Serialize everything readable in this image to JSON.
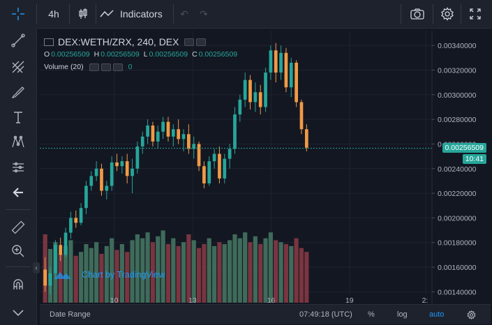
{
  "toolbar": {
    "interval": "4h",
    "indicators_label": "Indicators"
  },
  "legend": {
    "symbol": "DEX:WETH/ZRX, 240, DEX",
    "o_label": "O",
    "o_val": "0.00256509",
    "h_label": "H",
    "h_val": "0.00256509",
    "l_label": "L",
    "l_val": "0.00256509",
    "c_label": "C",
    "c_val": "0.00256509",
    "volume_label": "Volume (20)",
    "volume_val": "0"
  },
  "watermark": "Chart by TradingView",
  "price_axis": {
    "labels": [
      "0.00340000",
      "0.00320000",
      "0.00300000",
      "0.00280000",
      "0.00260000",
      "0.00240000",
      "0.00220000",
      "0.00200000",
      "0.00180000",
      "0.00160000",
      "0.00140000"
    ],
    "last_price": "0.00256509",
    "countdown": "10:41"
  },
  "time_axis": {
    "labels": [
      "10",
      "13",
      "16",
      "19",
      "2:"
    ]
  },
  "bottom": {
    "date_range": "Date Range",
    "time": "07:49:18 (UTC)",
    "percent": "%",
    "log": "log",
    "auto": "auto"
  },
  "colors": {
    "up": "#26a69a",
    "down": "#ef9a45",
    "vol_up": "#3f6b5a",
    "vol_down": "#7a3540",
    "accent": "#2196f3"
  },
  "chart_data": {
    "type": "candlestick",
    "y_range": [
      0.0013,
      0.00352
    ],
    "ohlc": [
      [
        0.00158,
        0.00168,
        0.0014,
        0.00145
      ],
      [
        0.00145,
        0.0016,
        0.00138,
        0.00155
      ],
      [
        0.00155,
        0.00182,
        0.0015,
        0.00178
      ],
      [
        0.00178,
        0.00184,
        0.00165,
        0.0017
      ],
      [
        0.0017,
        0.00192,
        0.00168,
        0.00188
      ],
      [
        0.00188,
        0.00205,
        0.00183,
        0.002
      ],
      [
        0.002,
        0.00206,
        0.00192,
        0.00196
      ],
      [
        0.00196,
        0.00212,
        0.00194,
        0.00208
      ],
      [
        0.00208,
        0.0023,
        0.00203,
        0.00226
      ],
      [
        0.00226,
        0.00238,
        0.00222,
        0.00234
      ],
      [
        0.00234,
        0.00246,
        0.0023,
        0.0024
      ],
      [
        0.0024,
        0.00244,
        0.00218,
        0.00222
      ],
      [
        0.00222,
        0.0023,
        0.00215,
        0.00226
      ],
      [
        0.00226,
        0.0025,
        0.00222,
        0.00245
      ],
      [
        0.00245,
        0.00252,
        0.00238,
        0.00242
      ],
      [
        0.00242,
        0.0025,
        0.00236,
        0.00246
      ],
      [
        0.00246,
        0.00252,
        0.00228,
        0.00234
      ],
      [
        0.00234,
        0.00248,
        0.0022,
        0.0024
      ],
      [
        0.0024,
        0.00262,
        0.00236,
        0.00258
      ],
      [
        0.00258,
        0.0027,
        0.00252,
        0.00266
      ],
      [
        0.00266,
        0.0028,
        0.0026,
        0.00275
      ],
      [
        0.00275,
        0.00278,
        0.00258,
        0.00262
      ],
      [
        0.00262,
        0.00275,
        0.00256,
        0.0027
      ],
      [
        0.0027,
        0.00282,
        0.00264,
        0.00278
      ],
      [
        0.00278,
        0.00282,
        0.00262,
        0.00266
      ],
      [
        0.00266,
        0.00276,
        0.00258,
        0.00272
      ],
      [
        0.00272,
        0.0028,
        0.0026,
        0.00264
      ],
      [
        0.00264,
        0.00272,
        0.00254,
        0.00268
      ],
      [
        0.00268,
        0.00276,
        0.00252,
        0.00256
      ],
      [
        0.00256,
        0.00266,
        0.00248,
        0.0026
      ],
      [
        0.0026,
        0.00262,
        0.00238,
        0.00242
      ],
      [
        0.00242,
        0.00246,
        0.00224,
        0.00228
      ],
      [
        0.00228,
        0.0025,
        0.00226,
        0.00246
      ],
      [
        0.00246,
        0.00256,
        0.0024,
        0.00252
      ],
      [
        0.00252,
        0.00258,
        0.00228,
        0.00232
      ],
      [
        0.00232,
        0.00252,
        0.00228,
        0.00248
      ],
      [
        0.00248,
        0.0026,
        0.0024,
        0.00256
      ],
      [
        0.00256,
        0.0029,
        0.00252,
        0.00284
      ],
      [
        0.00284,
        0.003,
        0.00278,
        0.00296
      ],
      [
        0.00296,
        0.00318,
        0.0029,
        0.00312
      ],
      [
        0.00312,
        0.00316,
        0.00288,
        0.00294
      ],
      [
        0.00294,
        0.0031,
        0.00286,
        0.00302
      ],
      [
        0.00302,
        0.00308,
        0.00284,
        0.0029
      ],
      [
        0.0029,
        0.00322,
        0.00286,
        0.00318
      ],
      [
        0.00318,
        0.0034,
        0.00312,
        0.00336
      ],
      [
        0.00336,
        0.00342,
        0.0031,
        0.00318
      ],
      [
        0.00318,
        0.0034,
        0.00312,
        0.00334
      ],
      [
        0.00334,
        0.00338,
        0.00302,
        0.00306
      ],
      [
        0.00306,
        0.0033,
        0.00298,
        0.00326
      ],
      [
        0.00326,
        0.00328,
        0.0029,
        0.00294
      ],
      [
        0.00294,
        0.00296,
        0.00268,
        0.00272
      ],
      [
        0.00272,
        0.00276,
        0.00254,
        0.00257
      ]
    ],
    "volume": [
      0.7,
      0.55,
      0.62,
      0.5,
      0.58,
      0.64,
      0.48,
      0.52,
      0.6,
      0.56,
      0.62,
      0.5,
      0.58,
      0.66,
      0.54,
      0.6,
      0.52,
      0.64,
      0.7,
      0.66,
      0.72,
      0.62,
      0.68,
      0.74,
      0.6,
      0.66,
      0.58,
      0.62,
      0.7,
      0.64,
      0.56,
      0.6,
      0.66,
      0.58,
      0.62,
      0.6,
      0.64,
      0.7,
      0.66,
      0.72,
      0.62,
      0.68,
      0.6,
      0.66,
      0.72,
      0.64,
      0.62,
      0.6,
      0.58,
      0.66,
      0.56,
      0.52
    ]
  }
}
